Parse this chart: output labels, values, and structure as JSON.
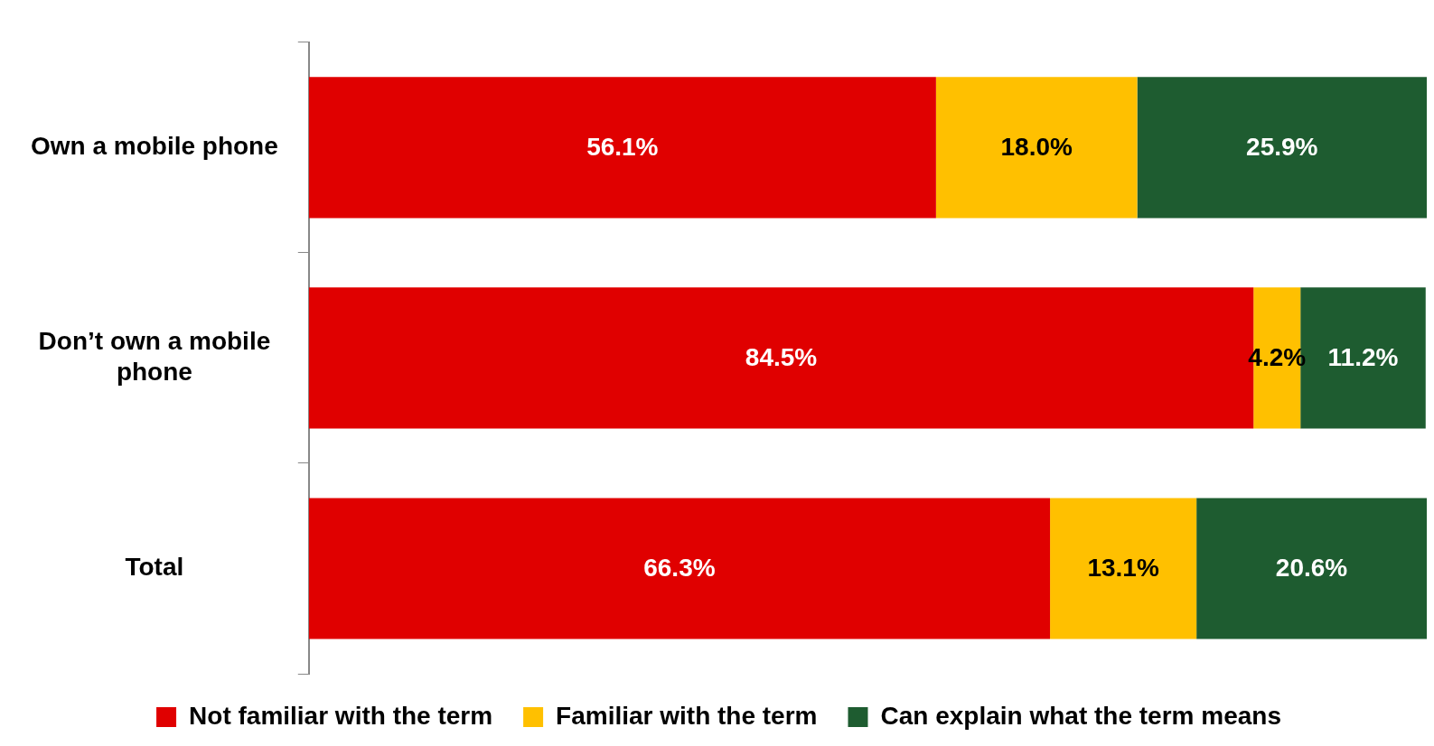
{
  "chart_data": {
    "type": "bar",
    "orientation": "horizontal",
    "stacked": true,
    "categories": [
      "Own a mobile phone",
      "Don’t own a mobile phone",
      "Total"
    ],
    "series": [
      {
        "name": "Not familiar with the term",
        "color": "#e00000",
        "values": [
          56.1,
          84.5,
          66.3
        ],
        "value_labels": [
          "56.1%",
          "84.5%",
          "66.3%"
        ]
      },
      {
        "name": "Familiar with the term",
        "color": "#ffc000",
        "values": [
          18.0,
          4.2,
          13.1
        ],
        "value_labels": [
          "18.0%",
          "4.2%",
          "13.1%"
        ]
      },
      {
        "name": "Can explain what the term means",
        "color": "#1e5c30",
        "values": [
          25.9,
          11.2,
          20.6
        ],
        "value_labels": [
          "25.9%",
          "11.2%",
          "20.6%"
        ]
      }
    ],
    "xlim": [
      0,
      100
    ],
    "tick_labels": "y",
    "grid": false,
    "legend": "bottom"
  }
}
